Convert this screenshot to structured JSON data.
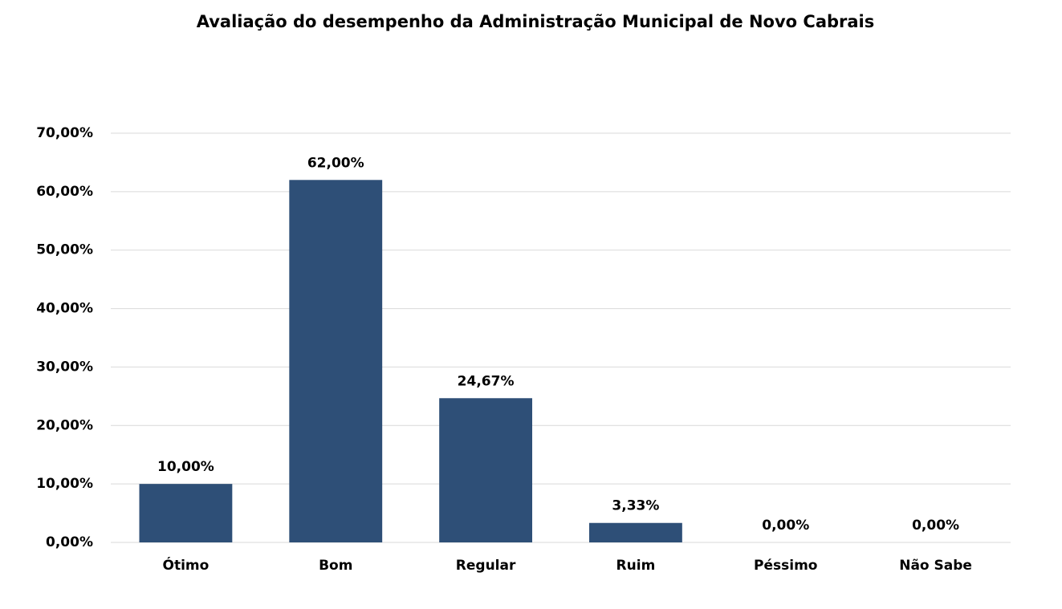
{
  "chart_data": {
    "type": "bar",
    "title": "Avaliação do desempenho da Administração Municipal de Novo Cabrais",
    "categories": [
      "Ótimo",
      "Bom",
      "Regular",
      "Ruim",
      "Péssimo",
      "Não Sabe"
    ],
    "values": [
      10,
      62,
      24.67,
      3.33,
      0,
      0
    ],
    "value_labels": [
      "10,00%",
      "62,00%",
      "24,67%",
      "3,33%",
      "0,00%",
      "0,00%"
    ],
    "color": "#2e4f77",
    "ylim": [
      0,
      70
    ],
    "yticks": [
      {
        "value": 0,
        "label": "0,00%"
      },
      {
        "value": 10,
        "label": "10,00%"
      },
      {
        "value": 20,
        "label": "20,00%"
      },
      {
        "value": 30,
        "label": "30,00%"
      },
      {
        "value": 40,
        "label": "40,00%"
      },
      {
        "value": 50,
        "label": "50,00%"
      },
      {
        "value": 60,
        "label": "60,00%"
      },
      {
        "value": 70,
        "label": "70,00%"
      }
    ],
    "grid": true
  }
}
